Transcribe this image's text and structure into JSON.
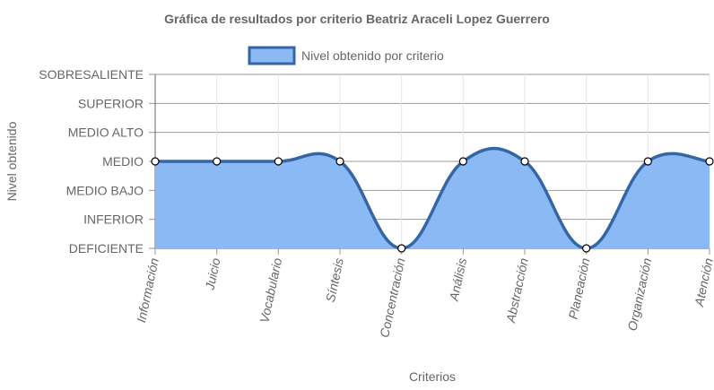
{
  "chart_data": {
    "type": "area",
    "title": "Gráfica de resultados por criterio Beatriz Araceli Lopez Guerrero",
    "xlabel": "Criterios",
    "ylabel": "Nivel obtenido",
    "categories": [
      "Información",
      "Juicio",
      "Vocabulario",
      "Síntesis",
      "Concentración",
      "Análisis",
      "Abstracción",
      "Planeación",
      "Organización",
      "Atención"
    ],
    "y_levels": [
      "DEFICIENTE",
      "INFERIOR",
      "MEDIO BAJO",
      "MEDIO",
      "MEDIO ALTO",
      "SUPERIOR",
      "SOBRESALIENTE"
    ],
    "ylim": [
      0,
      6
    ],
    "series": [
      {
        "name": "Nivel obtenido por criterio",
        "values": [
          3,
          3,
          3,
          3,
          0,
          3,
          3,
          0,
          3,
          3
        ]
      }
    ],
    "colors": {
      "line": "#3465a4",
      "fill": "#8ab9f5",
      "grid": "#e5e5e5",
      "axis": "#666666"
    },
    "legend": "top",
    "grid": true
  }
}
